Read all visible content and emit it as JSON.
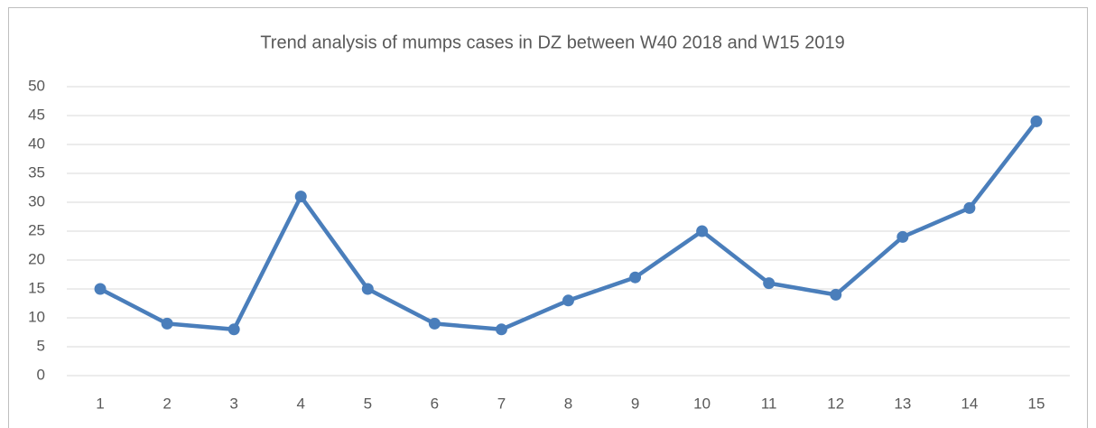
{
  "chart_data": {
    "type": "line",
    "title": "Trend analysis of mumps cases in DZ between W40 2018 and W15 2019",
    "categories": [
      1,
      2,
      3,
      4,
      5,
      6,
      7,
      8,
      9,
      10,
      11,
      12,
      13,
      14,
      15
    ],
    "series": [
      {
        "name": null,
        "color": "#4a7ebb",
        "values": [
          15,
          9,
          8,
          31,
          15,
          9,
          8,
          13,
          17,
          25,
          16,
          14,
          24,
          29,
          44
        ]
      }
    ],
    "ylim": [
      0,
      50
    ],
    "yticks": [
      0,
      5,
      10,
      15,
      20,
      25,
      30,
      35,
      40,
      45,
      50
    ],
    "grid": true
  }
}
